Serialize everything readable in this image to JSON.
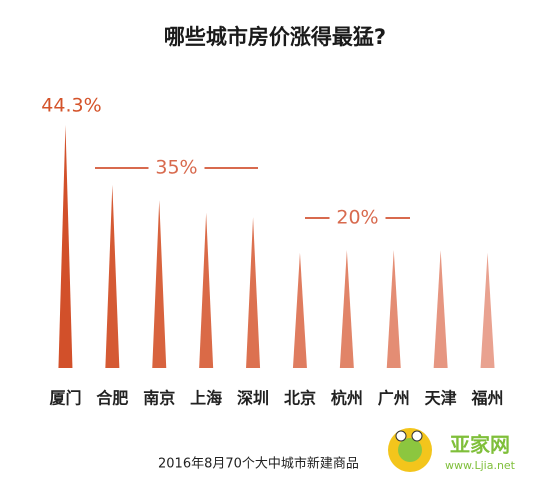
{
  "chart_data": {
    "type": "spike",
    "title": "哪些城市房价涨得最猛?",
    "categories": [
      "厦门",
      "合肥",
      "南京",
      "上海",
      "深圳",
      "北京",
      "杭州",
      "广州",
      "天津",
      "福州"
    ],
    "values": [
      44.3,
      33.4,
      30.6,
      28.3,
      27.5,
      21,
      21.5,
      21.5,
      21.5,
      21
    ],
    "value_labels": [
      "44.3%",
      null,
      null,
      null,
      null,
      null,
      null,
      null,
      null,
      null
    ],
    "colors": [
      "#d2502a",
      "#d55a34",
      "#d8633e",
      "#da6a47",
      "#dc7150",
      "#df7c5f",
      "#e18468",
      "#e48d74",
      "#e69681",
      "#e9a290"
    ],
    "annotations": [
      "35%",
      "20%"
    ],
    "footnote": "2016年8月70个大中城市新建商品"
  }
}
